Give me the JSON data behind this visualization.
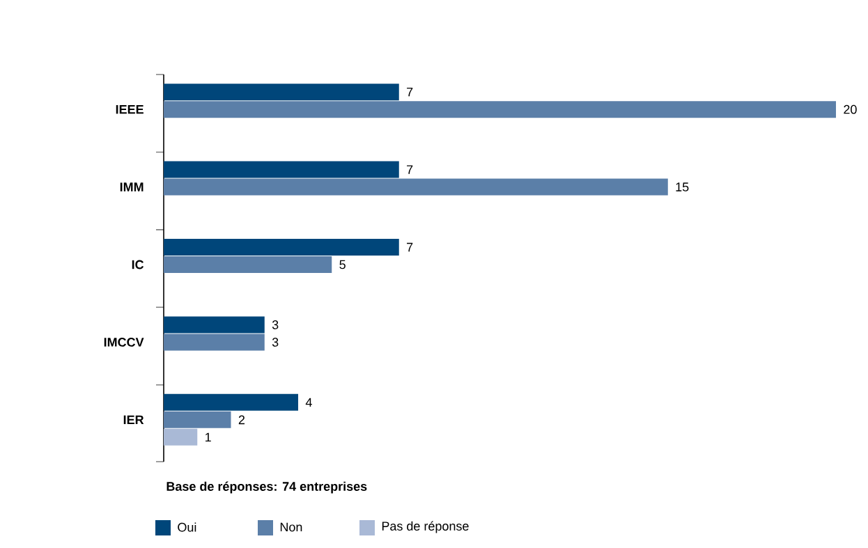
{
  "chart_data": {
    "type": "bar",
    "orientation": "horizontal",
    "categories": [
      "IEEE",
      "IMM",
      "IC",
      "IMCCV",
      "IER"
    ],
    "series": [
      {
        "name": "Oui",
        "color": "#00467a",
        "values": [
          7,
          7,
          7,
          3,
          4
        ]
      },
      {
        "name": "Non",
        "color": "#5b7fa8",
        "values": [
          20,
          15,
          5,
          3,
          2
        ]
      },
      {
        "name": "Pas de réponse",
        "color": "#a9b9d6",
        "values": [
          null,
          null,
          null,
          null,
          1
        ]
      }
    ],
    "data_labels": true,
    "legend": "bottom",
    "annotations": [
      "Base de réponses: 74 entreprises"
    ]
  }
}
